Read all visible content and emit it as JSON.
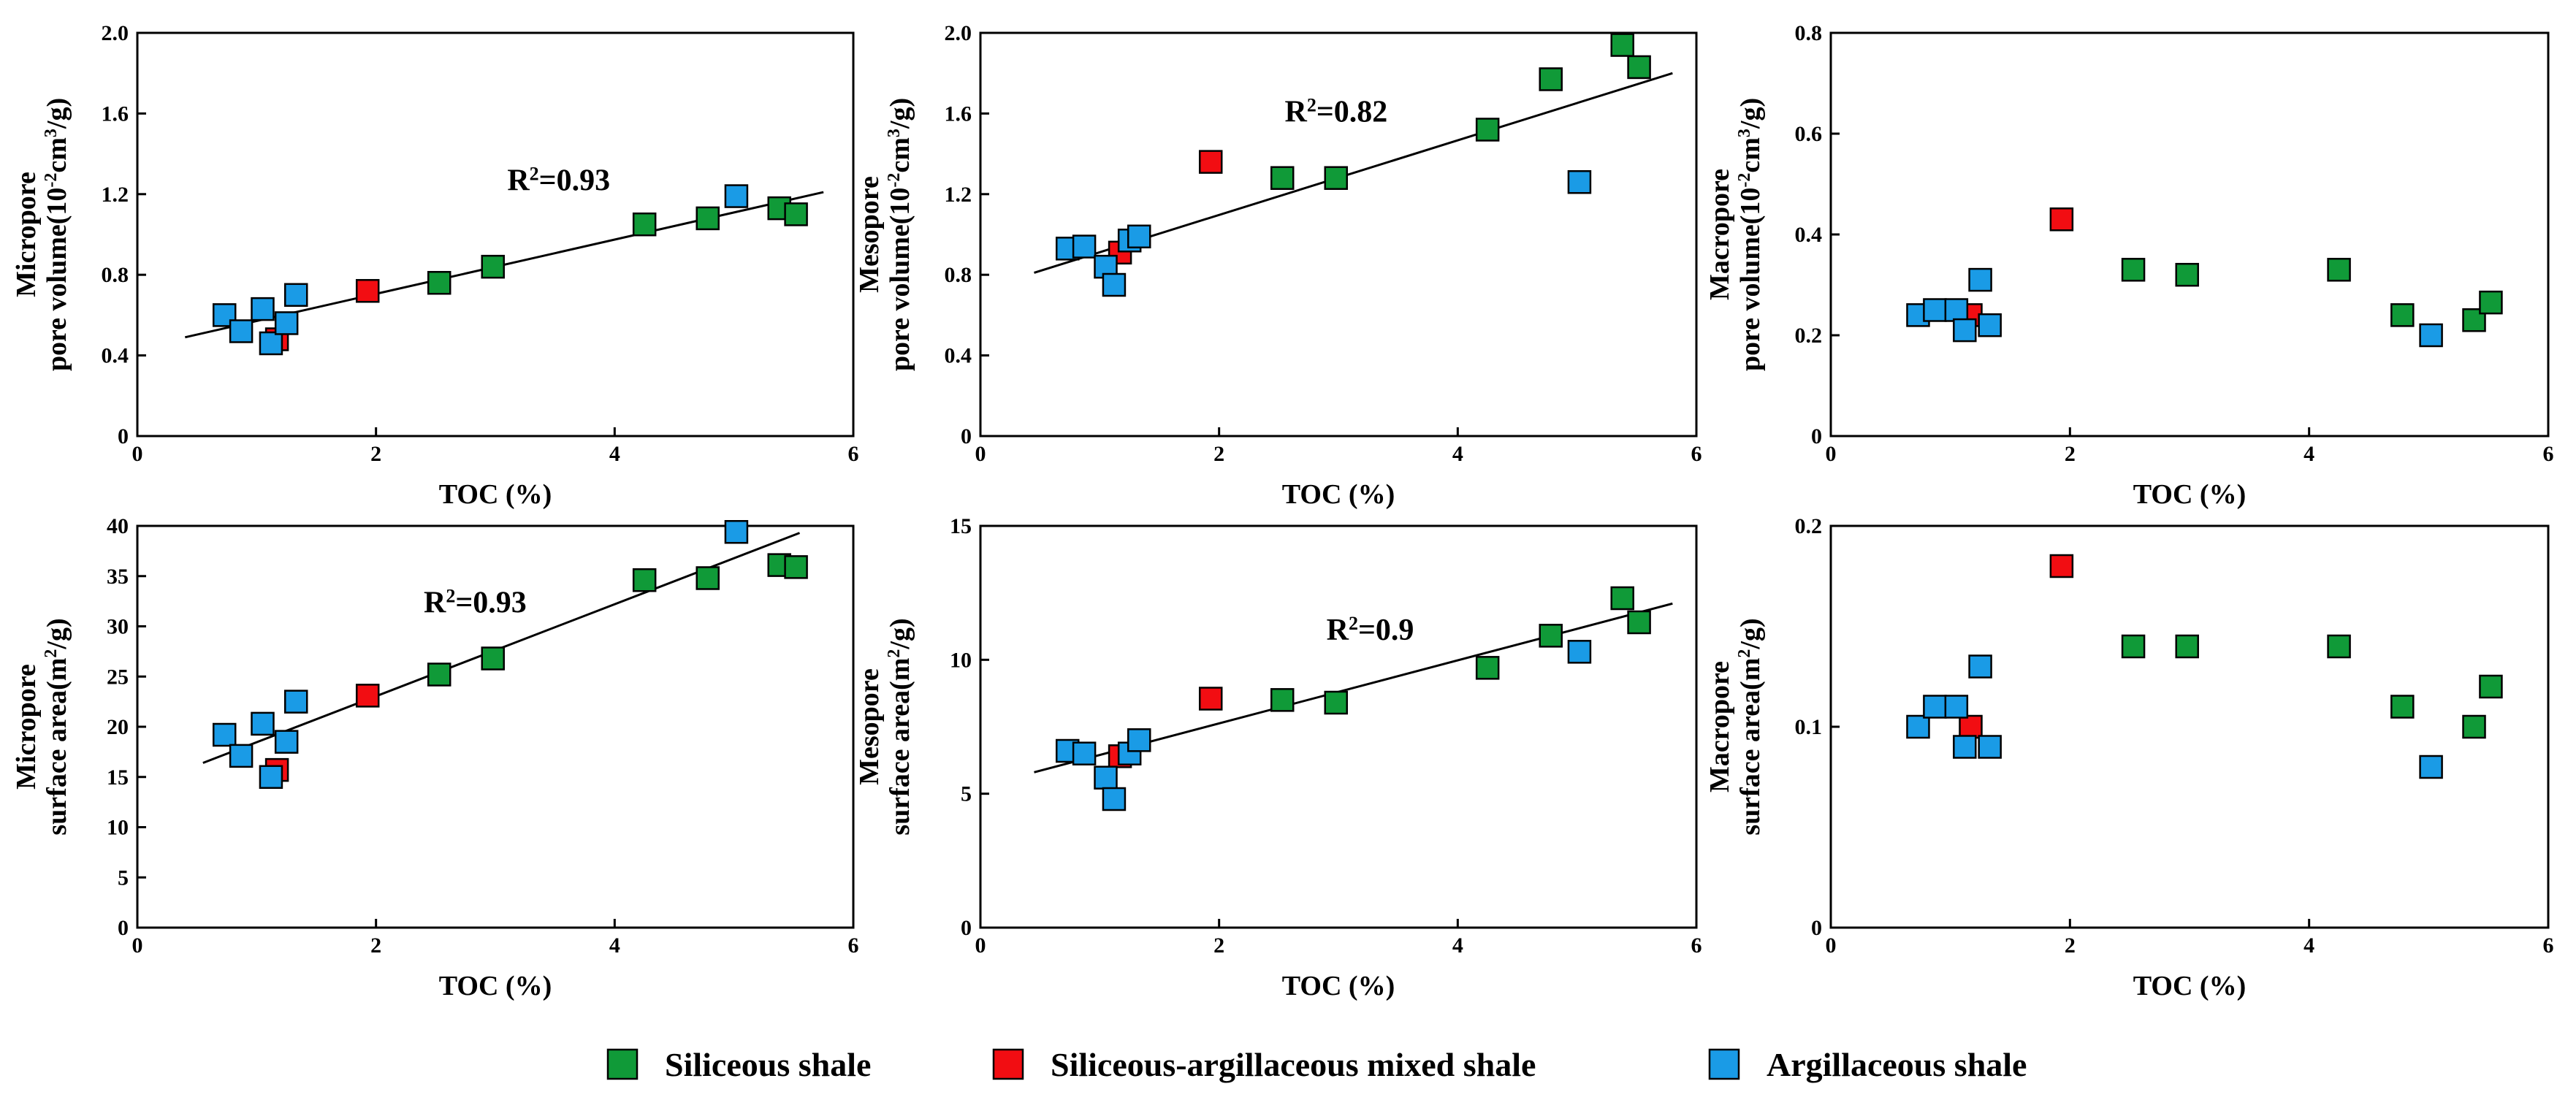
{
  "colors": {
    "siliceous": "#109A38",
    "mixed": "#F20D12",
    "argillaceous": "#1A9BE6"
  },
  "legend": [
    {
      "key": "siliceous",
      "label": "Siliceous shale"
    },
    {
      "key": "mixed",
      "label": "Siliceous-argillaceous mixed shale"
    },
    {
      "key": "argillaceous",
      "label": "Argillaceous shale"
    }
  ],
  "chart_data": [
    {
      "id": "micropore-volume",
      "type": "scatter",
      "xlabel": "TOC (%)",
      "ylabel_lines": [
        "Micropore",
        "pore volume(10",
        "-2",
        "cm",
        "3",
        "/g)"
      ],
      "xlim": [
        0,
        6
      ],
      "ylim": [
        0,
        2.0
      ],
      "xticks": [
        "0",
        "2",
        "4",
        "6"
      ],
      "xtick_values": [
        0,
        2,
        4,
        6
      ],
      "yticks": [
        "0",
        "0.4",
        "0.8",
        "1.2",
        "1.6",
        "2.0"
      ],
      "ytick_values": [
        0,
        0.4,
        0.8,
        1.2,
        1.6,
        2.0
      ],
      "r2_prefix": "R",
      "r2_sup": "2",
      "r2_value": "=0.93",
      "r2_at": [
        3.1,
        1.22
      ],
      "trendline": [
        [
          0.4,
          0.49
        ],
        [
          5.75,
          1.21
        ]
      ],
      "series": [
        {
          "key": "siliceous",
          "points": [
            [
              2.53,
              0.76
            ],
            [
              2.98,
              0.84
            ],
            [
              4.25,
              1.05
            ],
            [
              4.78,
              1.08
            ],
            [
              5.38,
              1.13
            ],
            [
              5.52,
              1.1
            ]
          ]
        },
        {
          "key": "mixed",
          "points": [
            [
              1.93,
              0.72
            ],
            [
              1.17,
              0.48
            ]
          ]
        },
        {
          "key": "argillaceous",
          "points": [
            [
              0.73,
              0.6
            ],
            [
              0.87,
              0.52
            ],
            [
              1.05,
              0.63
            ],
            [
              1.12,
              0.46
            ],
            [
              1.25,
              0.56
            ],
            [
              1.33,
              0.7
            ],
            [
              5.02,
              1.19
            ]
          ]
        }
      ]
    },
    {
      "id": "mesopore-volume",
      "type": "scatter",
      "xlabel": "TOC (%)",
      "ylabel_lines": [
        "Mesopore",
        "pore volume(10",
        "-2",
        "cm",
        "3",
        "/g)"
      ],
      "xlim": [
        0,
        6
      ],
      "ylim": [
        0,
        2.0
      ],
      "xticks": [
        "0",
        "2",
        "4",
        "6"
      ],
      "xtick_values": [
        0,
        2,
        4,
        6
      ],
      "yticks": [
        "0",
        "0.4",
        "0.8",
        "1.2",
        "1.6",
        "2.0"
      ],
      "ytick_values": [
        0,
        0.4,
        0.8,
        1.2,
        1.6,
        2.0
      ],
      "r2_prefix": "R",
      "r2_sup": "2",
      "r2_value": "=0.82",
      "r2_at": [
        2.55,
        1.56
      ],
      "trendline": [
        [
          0.45,
          0.81
        ],
        [
          5.8,
          1.8
        ]
      ],
      "series": [
        {
          "key": "siliceous",
          "points": [
            [
              2.53,
              1.28
            ],
            [
              2.98,
              1.28
            ],
            [
              4.25,
              1.52
            ],
            [
              4.78,
              1.77
            ],
            [
              5.38,
              1.94
            ],
            [
              5.52,
              1.83
            ]
          ]
        },
        {
          "key": "mixed",
          "points": [
            [
              1.93,
              1.36
            ],
            [
              1.17,
              0.91
            ]
          ]
        },
        {
          "key": "argillaceous",
          "points": [
            [
              0.73,
              0.93
            ],
            [
              0.87,
              0.94
            ],
            [
              1.05,
              0.84
            ],
            [
              1.12,
              0.75
            ],
            [
              1.25,
              0.97
            ],
            [
              1.33,
              0.99
            ],
            [
              5.02,
              1.26
            ]
          ]
        }
      ]
    },
    {
      "id": "macropore-volume",
      "type": "scatter",
      "xlabel": "TOC (%)",
      "ylabel_lines": [
        "Macropore",
        "pore volume(10",
        "-2",
        "cm",
        "3",
        "/g)"
      ],
      "xlim": [
        0,
        6
      ],
      "ylim": [
        0,
        0.8
      ],
      "xticks": [
        "0",
        "2",
        "4",
        "6"
      ],
      "xtick_values": [
        0,
        2,
        4,
        6
      ],
      "yticks": [
        "0",
        "0.2",
        "0.4",
        "0.6",
        "0.8"
      ],
      "ytick_values": [
        0,
        0.2,
        0.4,
        0.6,
        0.8
      ],
      "series": [
        {
          "key": "siliceous",
          "points": [
            [
              2.53,
              0.33
            ],
            [
              2.98,
              0.32
            ],
            [
              4.25,
              0.33
            ],
            [
              4.78,
              0.24
            ],
            [
              5.38,
              0.23
            ],
            [
              5.52,
              0.265
            ]
          ]
        },
        {
          "key": "mixed",
          "points": [
            [
              1.93,
              0.43
            ],
            [
              1.17,
              0.24
            ]
          ]
        },
        {
          "key": "argillaceous",
          "points": [
            [
              0.73,
              0.24
            ],
            [
              0.87,
              0.25
            ],
            [
              1.05,
              0.25
            ],
            [
              1.12,
              0.21
            ],
            [
              1.25,
              0.31
            ],
            [
              1.33,
              0.22
            ],
            [
              5.02,
              0.2
            ]
          ]
        }
      ]
    },
    {
      "id": "micropore-surface",
      "type": "scatter",
      "xlabel": "TOC (%)",
      "ylabel_lines": [
        "Micropore",
        "surface area(m",
        "2",
        "/g)"
      ],
      "xlim": [
        0,
        6
      ],
      "ylim": [
        0,
        40
      ],
      "xticks": [
        "0",
        "2",
        "4",
        "6"
      ],
      "xtick_values": [
        0,
        2,
        4,
        6
      ],
      "yticks": [
        "0",
        "5",
        "10",
        "15",
        "20",
        "25",
        "30",
        "35",
        "40"
      ],
      "ytick_values": [
        0,
        5,
        10,
        15,
        20,
        25,
        30,
        35,
        40
      ],
      "r2_prefix": "R",
      "r2_sup": "2",
      "r2_value": "=0.93",
      "r2_at": [
        2.4,
        31.4
      ],
      "trendline": [
        [
          0.55,
          16.4
        ],
        [
          5.55,
          39.3
        ]
      ],
      "series": [
        {
          "key": "siliceous",
          "points": [
            [
              2.53,
              25.2
            ],
            [
              2.98,
              26.8
            ],
            [
              4.25,
              34.6
            ],
            [
              4.78,
              34.8
            ],
            [
              5.38,
              36.1
            ],
            [
              5.52,
              35.9
            ]
          ]
        },
        {
          "key": "mixed",
          "points": [
            [
              1.93,
              23.1
            ],
            [
              1.17,
              15.7
            ]
          ]
        },
        {
          "key": "argillaceous",
          "points": [
            [
              0.73,
              19.2
            ],
            [
              0.87,
              17.1
            ],
            [
              1.05,
              20.3
            ],
            [
              1.12,
              15.0
            ],
            [
              1.25,
              18.5
            ],
            [
              1.33,
              22.5
            ],
            [
              5.02,
              39.4
            ]
          ]
        }
      ]
    },
    {
      "id": "mesopore-surface",
      "type": "scatter",
      "xlabel": "TOC (%)",
      "ylabel_lines": [
        "Mesopore",
        "surface area(m",
        "2",
        "/g)"
      ],
      "xlim": [
        0,
        6
      ],
      "ylim": [
        0,
        15
      ],
      "xticks": [
        "0",
        "2",
        "4",
        "6"
      ],
      "xtick_values": [
        0,
        2,
        4,
        6
      ],
      "yticks": [
        "0",
        "5",
        "10",
        "15"
      ],
      "ytick_values": [
        0,
        5,
        10,
        15
      ],
      "r2_prefix": "R",
      "r2_sup": "2",
      "r2_value": "=0.9",
      "r2_at": [
        2.9,
        10.75
      ],
      "trendline": [
        [
          0.45,
          5.8
        ],
        [
          5.8,
          12.1
        ]
      ],
      "series": [
        {
          "key": "siliceous",
          "points": [
            [
              2.53,
              8.5
            ],
            [
              2.98,
              8.4
            ],
            [
              4.25,
              9.7
            ],
            [
              4.78,
              10.9
            ],
            [
              5.38,
              12.3
            ],
            [
              5.52,
              11.4
            ]
          ]
        },
        {
          "key": "mixed",
          "points": [
            [
              1.93,
              8.55
            ],
            [
              1.17,
              6.4
            ]
          ]
        },
        {
          "key": "argillaceous",
          "points": [
            [
              0.73,
              6.6
            ],
            [
              0.87,
              6.5
            ],
            [
              1.05,
              5.6
            ],
            [
              1.12,
              4.8
            ],
            [
              1.25,
              6.5
            ],
            [
              1.33,
              7.0
            ],
            [
              5.02,
              10.3
            ]
          ]
        }
      ]
    },
    {
      "id": "macropore-surface",
      "type": "scatter",
      "xlabel": "TOC (%)",
      "ylabel_lines": [
        "Macropore",
        "surface area(m",
        "2",
        "/g)"
      ],
      "xlim": [
        0,
        6
      ],
      "ylim": [
        0,
        0.2
      ],
      "xticks": [
        "0",
        "2",
        "4",
        "6"
      ],
      "xtick_values": [
        0,
        2,
        4,
        6
      ],
      "yticks": [
        "0",
        "0.1",
        "0.2"
      ],
      "ytick_values": [
        0,
        0.1,
        0.2
      ],
      "series": [
        {
          "key": "siliceous",
          "points": [
            [
              2.53,
              0.14
            ],
            [
              2.98,
              0.14
            ],
            [
              4.25,
              0.14
            ],
            [
              4.78,
              0.11
            ],
            [
              5.38,
              0.1
            ],
            [
              5.52,
              0.12
            ]
          ]
        },
        {
          "key": "mixed",
          "points": [
            [
              1.93,
              0.18
            ],
            [
              1.17,
              0.1
            ]
          ]
        },
        {
          "key": "argillaceous",
          "points": [
            [
              0.73,
              0.1
            ],
            [
              0.87,
              0.11
            ],
            [
              1.05,
              0.11
            ],
            [
              1.12,
              0.09
            ],
            [
              1.25,
              0.13
            ],
            [
              1.33,
              0.09
            ],
            [
              5.02,
              0.08
            ]
          ]
        }
      ]
    }
  ]
}
